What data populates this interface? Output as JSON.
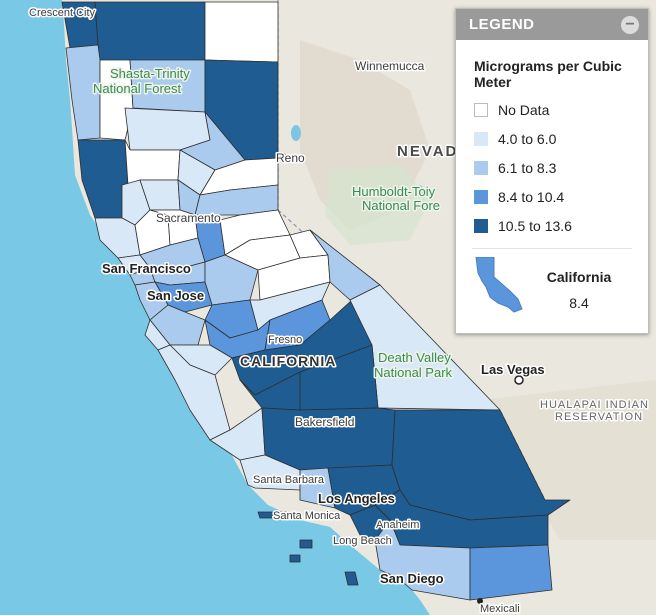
{
  "colors": {
    "ocean": "#79c8e6",
    "land": "#eae7de",
    "no_data": "#ffffff",
    "bin1": "#d9e8f7",
    "bin2": "#aacbee",
    "bin3": "#5b95dc",
    "bin4": "#1e5c91"
  },
  "map_labels": {
    "crescent_city": "Crescent City",
    "winnemucca": "Winnemucca",
    "shasta_trinity": "Shasta-Trinity",
    "national_forest": "National Forest",
    "reno": "Reno",
    "nevada": "NEVAD",
    "humboldt": "Humboldt-Toiy",
    "national_fore": "National Fore",
    "sacramento": "Sacramento",
    "san_francisco": "San Francisco",
    "san_jose": "San Jose",
    "fresno": "Fresno",
    "california": "CALIFORNIA",
    "death_valley": "Death Valley",
    "national_park": "National Park",
    "las_vegas": "Las Vegas",
    "hualapai": "HUALAPAI INDIAN",
    "reservation": "RESERVATION",
    "bakersfield": "Bakersfield",
    "santa_barbara": "Santa Barbara",
    "los_angeles": "Los Angeles",
    "santa_monica": "Santa Monica",
    "anaheim": "Anaheim",
    "long_beach": "Long Beach",
    "san_diego": "San Diego",
    "mexicali": "Mexicali"
  },
  "legend": {
    "title": "LEGEND",
    "collapse_symbol": "−",
    "unit": "Micrograms per Cubic Meter",
    "bins": [
      {
        "label": "No Data",
        "color": "#ffffff"
      },
      {
        "label": "4.0 to 6.0",
        "color": "#d9e8f7"
      },
      {
        "label": "6.1 to 8.3",
        "color": "#aacbee"
      },
      {
        "label": "8.4 to 10.4",
        "color": "#5b95dc"
      },
      {
        "label": "10.5 to 13.6",
        "color": "#1e5c91"
      }
    ],
    "state_name": "California",
    "state_value": "8.4",
    "state_color": "#5b95dc"
  }
}
